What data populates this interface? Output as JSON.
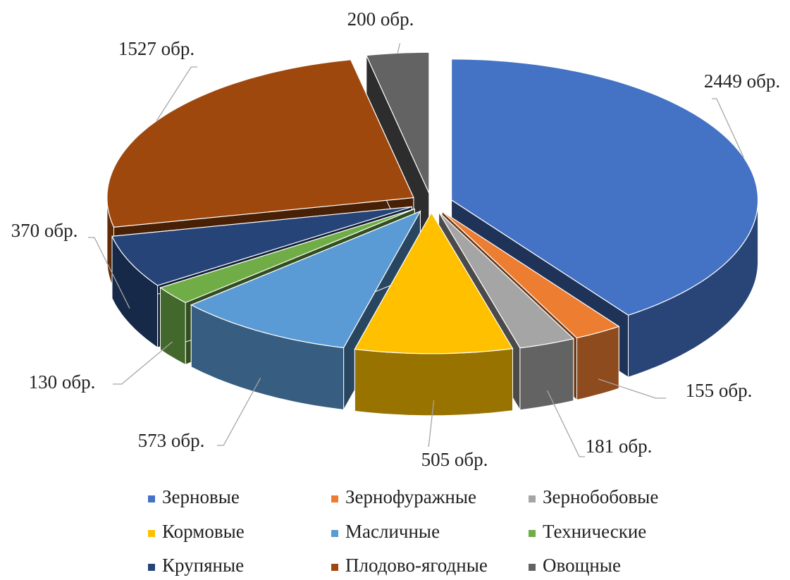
{
  "chart_data": {
    "type": "pie3d",
    "categories": [
      "Зерновые",
      "Зернофуражные",
      "Зернобобовые",
      "Кормовые",
      "Масличные",
      "Технические",
      "Крупяные",
      "Плодово-ягодные",
      "Овощные"
    ],
    "values": [
      2449,
      155,
      181,
      505,
      573,
      130,
      370,
      1527,
      200
    ],
    "value_labels": [
      "2449 обр.",
      "155 обр.",
      "181 обр.",
      "505 обр.",
      "573 обр.",
      "130 обр.",
      "370 обр.",
      "1527 обр.",
      "200 обр."
    ],
    "colors": [
      "#4472c4",
      "#ed7d31",
      "#a5a5a5",
      "#ffc000",
      "#5b9bd5",
      "#70ad47",
      "#264478",
      "#9e480e",
      "#636363"
    ],
    "legend": "bottom"
  }
}
